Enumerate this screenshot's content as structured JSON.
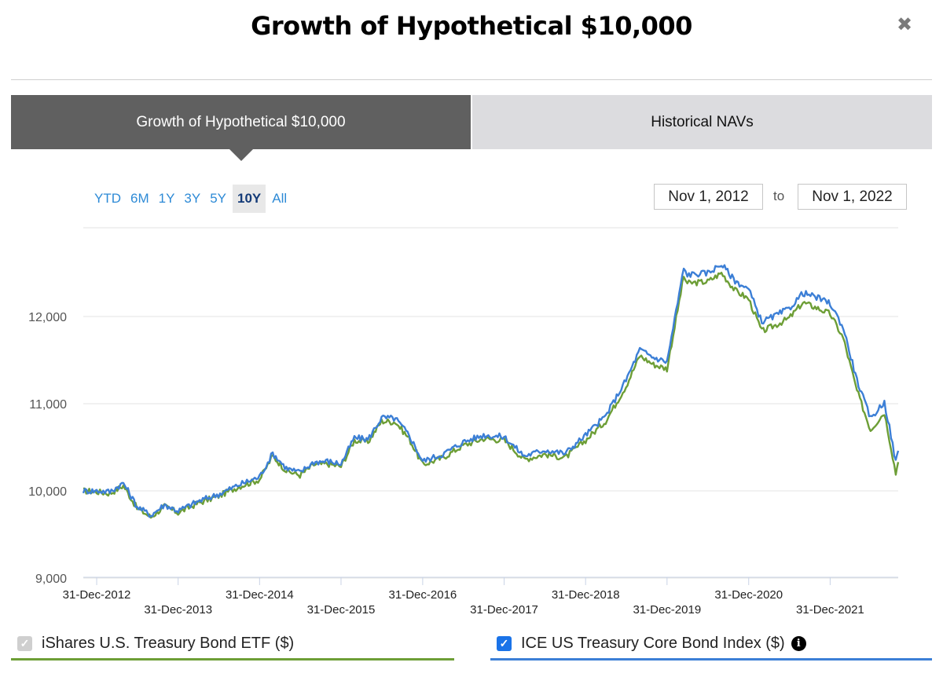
{
  "modal": {
    "title": "Growth of Hypothetical $10,000",
    "close_label": "✖"
  },
  "tabs": [
    {
      "label": "Growth of Hypothetical $10,000",
      "active": true
    },
    {
      "label": "Historical NAVs",
      "active": false
    }
  ],
  "range_buttons": [
    "YTD",
    "6M",
    "1Y",
    "3Y",
    "5Y",
    "10Y",
    "All"
  ],
  "selected_range": "10Y",
  "date_range": {
    "from": "Nov 1, 2012",
    "separator": "to",
    "to": "Nov 1, 2022"
  },
  "colors": {
    "etf": "#6d9e36",
    "index": "#3c7fd6",
    "tab_active": "#606060",
    "tab_inactive": "#dcdcdf"
  },
  "legend": {
    "etf_label": "iShares U.S. Treasury Bond ETF ($)",
    "etf_checked": true,
    "etf_disabled": true,
    "index_label": "ICE US Treasury Core Bond Index ($)",
    "index_checked": true,
    "info_icon": "info-icon"
  },
  "chart_data": {
    "type": "line",
    "title": "",
    "xlabel": "",
    "ylabel": "",
    "x_range": [
      "2012-11-01",
      "2022-11-01"
    ],
    "ylim": [
      9000,
      12900
    ],
    "yticks": [
      9000,
      10000,
      11000,
      12000
    ],
    "ytick_labels": [
      "9,000",
      "10,000",
      "11,000",
      "12,000"
    ],
    "xticks": [
      "2012-12-31",
      "2013-12-31",
      "2014-12-31",
      "2015-12-31",
      "2016-12-31",
      "2017-12-31",
      "2018-12-31",
      "2019-12-31",
      "2020-12-31",
      "2021-12-31"
    ],
    "xtick_labels": [
      "31-Dec-2012",
      "31-Dec-2013",
      "31-Dec-2014",
      "31-Dec-2015",
      "31-Dec-2016",
      "31-Dec-2017",
      "31-Dec-2018",
      "31-Dec-2019",
      "31-Dec-2020",
      "31-Dec-2021"
    ],
    "grid": true,
    "series": [
      {
        "name": "iShares U.S. Treasury Bond ETF ($)",
        "color": "#6d9e36",
        "points": [
          [
            "2012-11-01",
            10000
          ],
          [
            "2012-12-31",
            9990
          ],
          [
            "2013-02-28",
            9970
          ],
          [
            "2013-04-30",
            10060
          ],
          [
            "2013-06-30",
            9800
          ],
          [
            "2013-08-31",
            9700
          ],
          [
            "2013-10-31",
            9820
          ],
          [
            "2013-12-31",
            9750
          ],
          [
            "2014-03-31",
            9860
          ],
          [
            "2014-06-30",
            9940
          ],
          [
            "2014-09-30",
            10050
          ],
          [
            "2014-12-31",
            10130
          ],
          [
            "2015-02-28",
            10400
          ],
          [
            "2015-04-30",
            10230
          ],
          [
            "2015-06-30",
            10180
          ],
          [
            "2015-08-31",
            10300
          ],
          [
            "2015-10-31",
            10310
          ],
          [
            "2015-12-31",
            10280
          ],
          [
            "2016-02-29",
            10580
          ],
          [
            "2016-04-30",
            10560
          ],
          [
            "2016-06-30",
            10800
          ],
          [
            "2016-08-31",
            10790
          ],
          [
            "2016-10-31",
            10600
          ],
          [
            "2016-12-31",
            10300
          ],
          [
            "2017-03-31",
            10380
          ],
          [
            "2017-06-30",
            10520
          ],
          [
            "2017-09-30",
            10600
          ],
          [
            "2017-12-31",
            10580
          ],
          [
            "2018-03-31",
            10360
          ],
          [
            "2018-06-30",
            10420
          ],
          [
            "2018-09-30",
            10380
          ],
          [
            "2018-12-31",
            10580
          ],
          [
            "2019-03-31",
            10800
          ],
          [
            "2019-06-30",
            11200
          ],
          [
            "2019-08-31",
            11550
          ],
          [
            "2019-10-31",
            11450
          ],
          [
            "2019-12-31",
            11400
          ],
          [
            "2020-03-15",
            12460
          ],
          [
            "2020-03-31",
            12380
          ],
          [
            "2020-06-30",
            12400
          ],
          [
            "2020-08-31",
            12500
          ],
          [
            "2020-10-31",
            12300
          ],
          [
            "2020-12-31",
            12200
          ],
          [
            "2021-02-28",
            11830
          ],
          [
            "2021-04-30",
            11900
          ],
          [
            "2021-06-30",
            11980
          ],
          [
            "2021-08-31",
            12160
          ],
          [
            "2021-10-31",
            12100
          ],
          [
            "2021-12-31",
            12030
          ],
          [
            "2022-02-28",
            11750
          ],
          [
            "2022-04-30",
            11150
          ],
          [
            "2022-06-30",
            10700
          ],
          [
            "2022-08-31",
            10900
          ],
          [
            "2022-09-30",
            10500
          ],
          [
            "2022-10-21",
            10200
          ],
          [
            "2022-11-01",
            10330
          ]
        ]
      },
      {
        "name": "ICE US Treasury Core Bond Index ($)",
        "color": "#3c7fd6",
        "points": [
          [
            "2012-11-01",
            10000
          ],
          [
            "2012-12-31",
            10000
          ],
          [
            "2013-02-28",
            9990
          ],
          [
            "2013-04-30",
            10090
          ],
          [
            "2013-06-30",
            9820
          ],
          [
            "2013-08-31",
            9720
          ],
          [
            "2013-10-31",
            9840
          ],
          [
            "2013-12-31",
            9770
          ],
          [
            "2014-03-31",
            9880
          ],
          [
            "2014-06-30",
            9960
          ],
          [
            "2014-09-30",
            10070
          ],
          [
            "2014-12-31",
            10160
          ],
          [
            "2015-02-28",
            10430
          ],
          [
            "2015-04-30",
            10260
          ],
          [
            "2015-06-30",
            10210
          ],
          [
            "2015-08-31",
            10330
          ],
          [
            "2015-10-31",
            10340
          ],
          [
            "2015-12-31",
            10310
          ],
          [
            "2016-02-29",
            10610
          ],
          [
            "2016-04-30",
            10590
          ],
          [
            "2016-06-30",
            10840
          ],
          [
            "2016-08-31",
            10830
          ],
          [
            "2016-10-31",
            10640
          ],
          [
            "2016-12-31",
            10340
          ],
          [
            "2017-03-31",
            10420
          ],
          [
            "2017-06-30",
            10560
          ],
          [
            "2017-09-30",
            10640
          ],
          [
            "2017-12-31",
            10620
          ],
          [
            "2018-03-31",
            10400
          ],
          [
            "2018-06-30",
            10470
          ],
          [
            "2018-09-30",
            10430
          ],
          [
            "2018-12-31",
            10640
          ],
          [
            "2019-03-31",
            10860
          ],
          [
            "2019-06-30",
            11270
          ],
          [
            "2019-08-31",
            11620
          ],
          [
            "2019-10-31",
            11530
          ],
          [
            "2019-12-31",
            11480
          ],
          [
            "2020-03-15",
            12550
          ],
          [
            "2020-03-31",
            12480
          ],
          [
            "2020-06-30",
            12500
          ],
          [
            "2020-08-31",
            12600
          ],
          [
            "2020-10-31",
            12410
          ],
          [
            "2020-12-31",
            12310
          ],
          [
            "2021-02-28",
            11940
          ],
          [
            "2021-04-30",
            12010
          ],
          [
            "2021-06-30",
            12090
          ],
          [
            "2021-08-31",
            12270
          ],
          [
            "2021-10-31",
            12220
          ],
          [
            "2021-12-31",
            12150
          ],
          [
            "2022-02-28",
            11870
          ],
          [
            "2022-04-30",
            11270
          ],
          [
            "2022-06-30",
            10830
          ],
          [
            "2022-08-31",
            11020
          ],
          [
            "2022-09-30",
            10630
          ],
          [
            "2022-10-21",
            10330
          ],
          [
            "2022-11-01",
            10460
          ]
        ]
      }
    ]
  }
}
